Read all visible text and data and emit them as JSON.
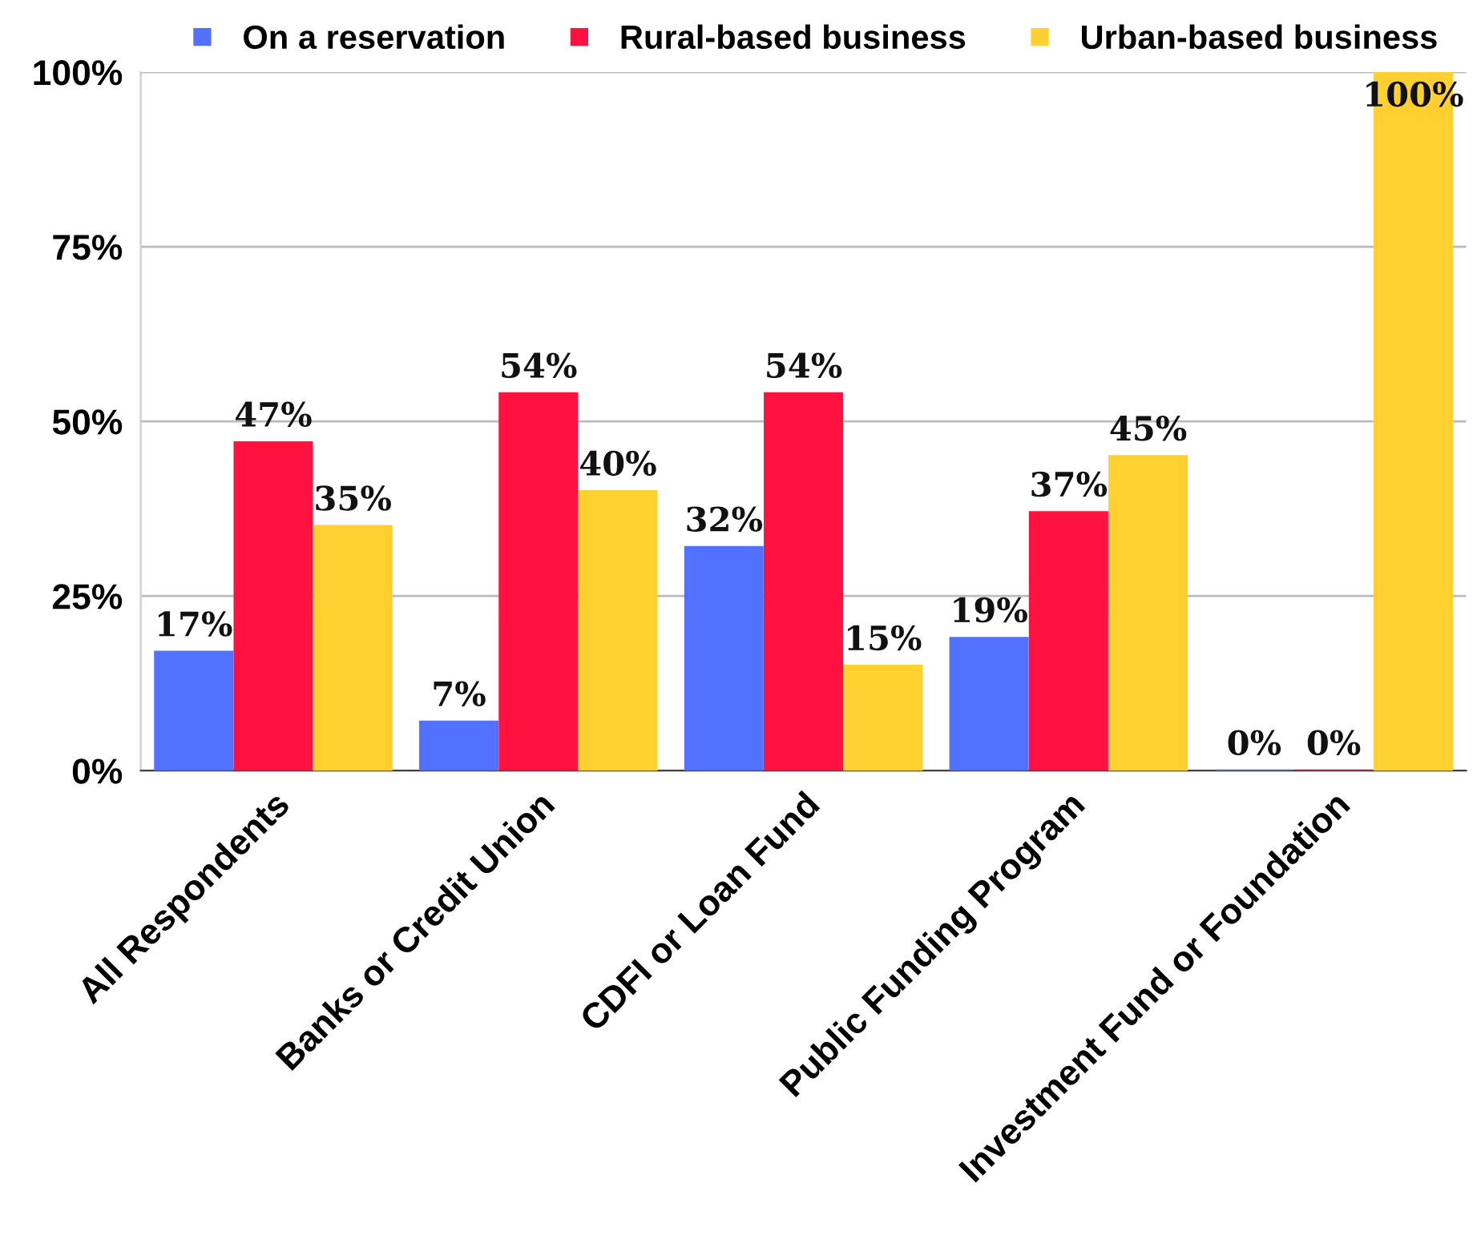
{
  "chart_data": {
    "type": "bar",
    "categories": [
      "All Respondents",
      "Banks or Credit Union",
      "CDFI or Loan Fund",
      "Public Funding Program",
      "Investment Fund or Foundation"
    ],
    "series": [
      {
        "name": "On a reservation",
        "color": "#5271ff",
        "values": [
          17,
          7,
          32,
          19,
          0
        ],
        "value_labels": [
          "17%",
          "7%",
          "32%",
          "19%",
          "0%"
        ]
      },
      {
        "name": "Rural-based business",
        "color": "#ff1140",
        "values": [
          47,
          54,
          54,
          37,
          0
        ],
        "value_labels": [
          "47%",
          "54%",
          "54%",
          "37%",
          "0%"
        ]
      },
      {
        "name": "Urban-based business",
        "color": "#ffd02f",
        "values": [
          35,
          40,
          15,
          45,
          100
        ],
        "value_labels": [
          "35%",
          "40%",
          "15%",
          "45%",
          "100%"
        ]
      }
    ],
    "ylim": [
      0,
      100
    ],
    "yticks": [
      {
        "value": 0,
        "label": "0%"
      },
      {
        "value": 25,
        "label": "25%"
      },
      {
        "value": 50,
        "label": "50%"
      },
      {
        "value": 75,
        "label": "75%"
      },
      {
        "value": 100,
        "label": "100%"
      }
    ],
    "grid": "y",
    "legend": "top"
  }
}
